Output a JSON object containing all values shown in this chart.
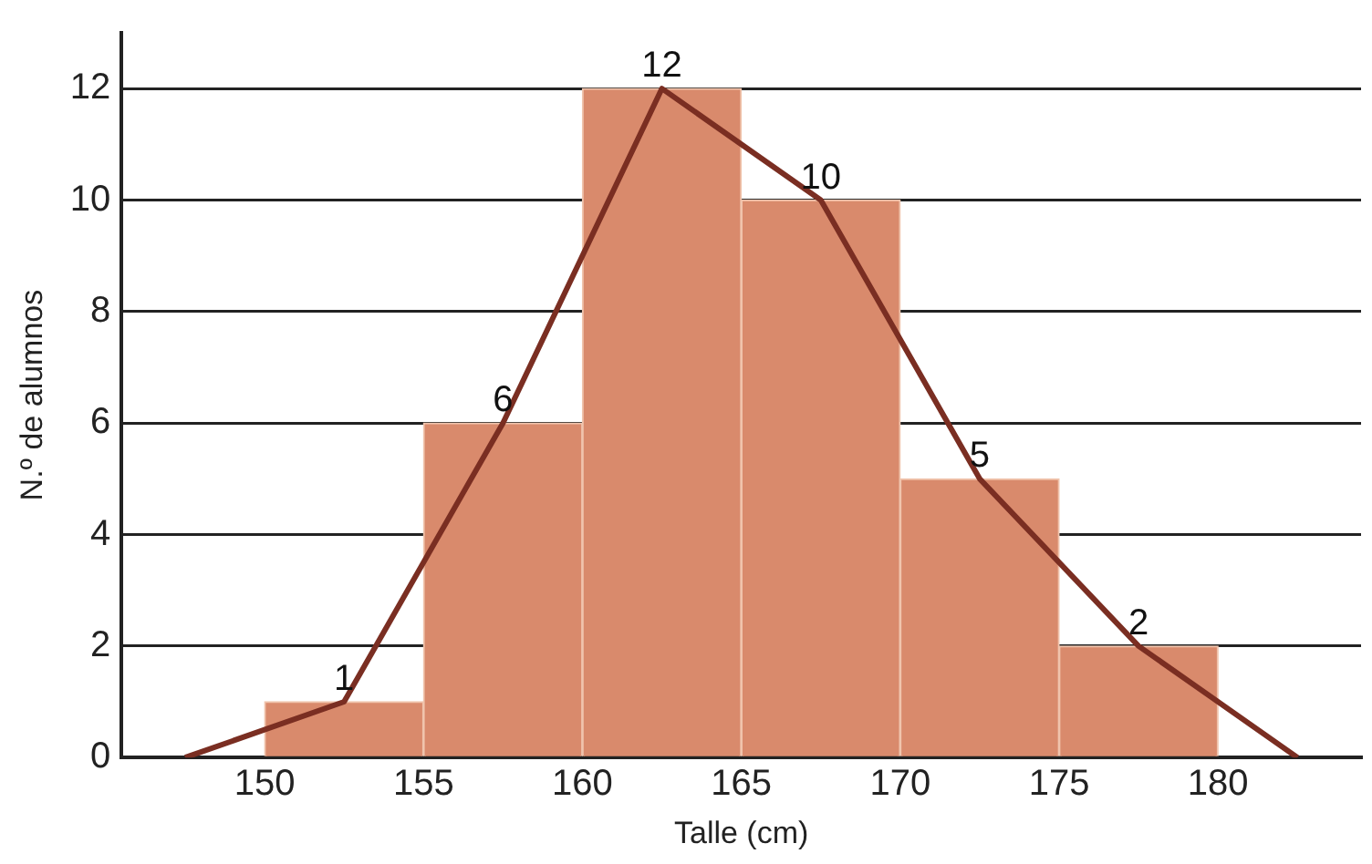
{
  "chart_data": {
    "type": "histogram",
    "xlabel": "Talle (cm)",
    "ylabel": "N.º de alumnos",
    "bins": [
      150,
      155,
      160,
      165,
      170,
      175,
      180
    ],
    "values": [
      1,
      6,
      12,
      10,
      5,
      2
    ],
    "color": "#d98a6c",
    "value_labels": [
      "1",
      "6",
      "12",
      "10",
      "5",
      "2"
    ],
    "xlim": [
      145.5,
      184.5
    ],
    "xticks": [
      150,
      155,
      160,
      165,
      170,
      175,
      180
    ],
    "ylim": [
      0,
      13
    ],
    "yticks": [
      0,
      2,
      4,
      6,
      8,
      10,
      12
    ],
    "grid": "y",
    "legend": false,
    "series": [
      {
        "type": "line",
        "x": [
          147.5,
          152.5,
          157.5,
          162.5,
          167.5,
          172.5,
          177.5,
          182.5
        ],
        "values": [
          0,
          1,
          6,
          12,
          10,
          5,
          2,
          0
        ],
        "color": "#7a2e22",
        "marker": "none"
      }
    ]
  }
}
